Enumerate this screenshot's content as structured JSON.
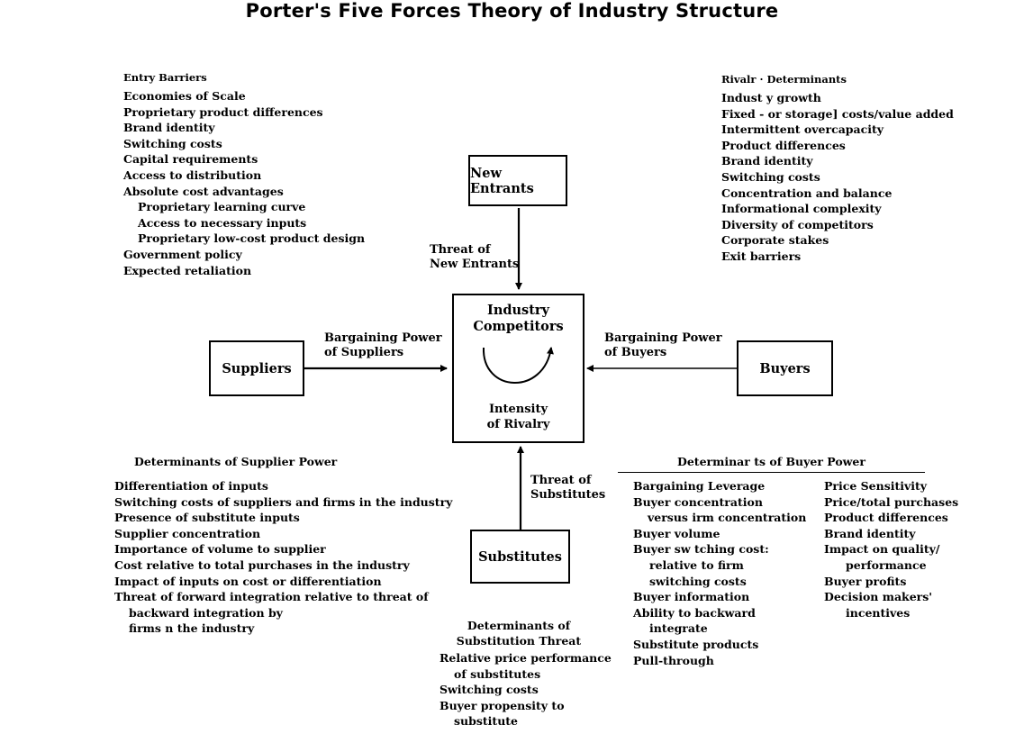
{
  "title": "Porter's Five Forces Theory of Industry Structure",
  "entry_barriers": {
    "heading": "Entry Barriers",
    "items": [
      {
        "text": "Economies of Scale",
        "level": 0
      },
      {
        "text": "Proprietary product differences",
        "level": 0
      },
      {
        "text": "Brand identity",
        "level": 0
      },
      {
        "text": "Switching costs",
        "level": 0
      },
      {
        "text": "Capital requirements",
        "level": 0
      },
      {
        "text": "Access to distribution",
        "level": 0
      },
      {
        "text": "Absolute cost advantages",
        "level": 0
      },
      {
        "text": "Proprietary learning curve",
        "level": 1
      },
      {
        "text": "Access to necessary inputs",
        "level": 1
      },
      {
        "text": "Proprietary low-cost product design",
        "level": 1
      },
      {
        "text": "Government policy",
        "level": 0
      },
      {
        "text": "Expected retaliation",
        "level": 0
      }
    ]
  },
  "rivalry_determinants": {
    "heading": "Rivalr · Determinants",
    "items": [
      "Indust y growth",
      "Fixed - or storage] costs/value added",
      "Intermittent overcapacity",
      "Product differences",
      "Brand identity",
      "Switching costs",
      "Concentration and balance",
      "Informational complexity",
      "Diversity of competitors",
      "Corporate stakes",
      "Exit barriers"
    ]
  },
  "boxes": {
    "new_entrants": "New Entrants",
    "suppliers": "Suppliers",
    "buyers": "Buyers",
    "substitutes": "Substitutes",
    "industry_line1": "Industry",
    "industry_line2": "Competitors",
    "rivalry_line1": "Intensity",
    "rivalry_line2": "of Rivalry"
  },
  "arrow_labels": {
    "threat_new_line1": "Threat of",
    "threat_new_line2": "New Entrants",
    "supplier_power_line1": "Bargaining Power",
    "supplier_power_line2": "of Suppliers",
    "buyer_power_line1": "Bargaining Power",
    "buyer_power_line2": "of Buyers",
    "threat_subs_line1": "Threat of",
    "threat_subs_line2": "Substitutes"
  },
  "supplier_power": {
    "heading": "Determinants of Supplier Power",
    "items": [
      {
        "text": "Differentiation of inputs",
        "level": 0
      },
      {
        "text": "Switching costs of suppliers and firms in the industry",
        "level": 0
      },
      {
        "text": "Presence of substitute inputs",
        "level": 0
      },
      {
        "text": "Supplier concentration",
        "level": 0
      },
      {
        "text": "Importance of volume to supplier",
        "level": 0
      },
      {
        "text": "Cost relative to total purchases in the industry",
        "level": 0
      },
      {
        "text": "Impact of inputs on cost or differentiation",
        "level": 0
      },
      {
        "text": "Threat of forward integration relative to threat of",
        "level": 0
      },
      {
        "text": "backward integration by",
        "level": 1
      },
      {
        "text": "firms n the industry",
        "level": 1
      }
    ]
  },
  "substitution_threat": {
    "heading_line1": "Determinants of",
    "heading_line2": "Substitution Threat",
    "items": [
      {
        "text": "Relative price performance",
        "level": 0
      },
      {
        "text": "of substitutes",
        "level": 1
      },
      {
        "text": "Switching costs",
        "level": 0
      },
      {
        "text": "Buyer propensity to",
        "level": 0
      },
      {
        "text": "substitute",
        "level": 1
      }
    ]
  },
  "buyer_power": {
    "heading": "Determinar ts of Buyer Power",
    "leverage": {
      "heading": "Bargaining Leverage",
      "items": [
        {
          "text": "Buyer concentration",
          "level": 0
        },
        {
          "text": "versus irm concentration",
          "level": 1
        },
        {
          "text": "Buyer volume",
          "level": 0
        },
        {
          "text": "Buyer sw tching cost:",
          "level": 0
        },
        {
          "text": "relative to firm",
          "level": 2
        },
        {
          "text": "switching costs",
          "level": 2
        },
        {
          "text": "Buyer information",
          "level": 0
        },
        {
          "text": "Ability to backward",
          "level": 0
        },
        {
          "text": "integrate",
          "level": 2
        },
        {
          "text": "Substitute products",
          "level": 0
        },
        {
          "text": "Pull-through",
          "level": 0
        }
      ]
    },
    "sensitivity": {
      "heading": "Price Sensitivity",
      "items": [
        {
          "text": "Price/total purchases",
          "level": 0
        },
        {
          "text": "Product differences",
          "level": 0
        },
        {
          "text": "Brand identity",
          "level": 0
        },
        {
          "text": "Impact on quality/",
          "level": 0
        },
        {
          "text": "performance",
          "level": 3
        },
        {
          "text": "Buyer profits",
          "level": 0
        },
        {
          "text": "Decision makers'",
          "level": 0
        },
        {
          "text": "incentives",
          "level": 3
        }
      ]
    }
  }
}
